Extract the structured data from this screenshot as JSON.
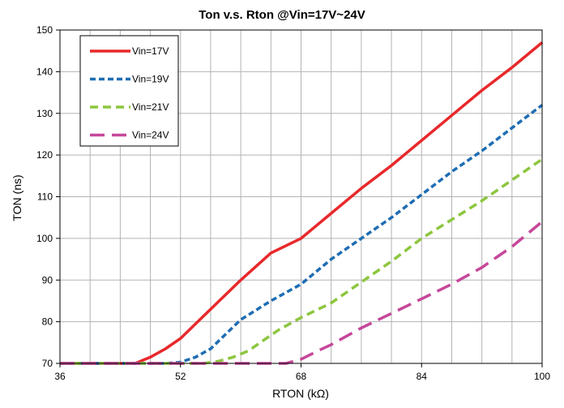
{
  "chart_data": {
    "type": "line",
    "title": "Ton v.s. Rton @Vin=17V~24V",
    "xlabel": "RTON (kΩ)",
    "ylabel": "TON (ns)",
    "xlim": [
      36,
      100
    ],
    "ylim": [
      70,
      150
    ],
    "x_major_ticks": [
      36,
      52,
      68,
      84,
      100
    ],
    "x_tick_labels": [
      "36",
      "52",
      "68",
      "84",
      "100"
    ],
    "x_minor_step": 4,
    "y_ticks": [
      70,
      80,
      90,
      100,
      110,
      120,
      130,
      140,
      150
    ],
    "y_tick_labels": [
      "70",
      "80",
      "90",
      "100",
      "110",
      "120",
      "130",
      "140",
      "150"
    ],
    "grid": true,
    "legend_position": "top-left",
    "series": [
      {
        "name": "Vin=17V",
        "color": "#e8282b",
        "dash": "solid",
        "x": [
          36,
          46,
          48,
          50,
          52,
          54,
          56,
          60,
          64,
          68,
          72,
          76,
          80,
          84,
          88,
          92,
          96,
          100
        ],
        "y": [
          70,
          70,
          71.5,
          73.5,
          76,
          79.5,
          83,
          90,
          96.5,
          100,
          106,
          112,
          117.5,
          123.5,
          129.5,
          135.5,
          141,
          147
        ]
      },
      {
        "name": "Vin=19V",
        "color": "#1e6db3",
        "dash": "short-dash",
        "x": [
          36,
          50,
          52,
          54,
          56,
          58,
          60,
          64,
          68,
          72,
          76,
          80,
          84,
          88,
          92,
          96,
          100
        ],
        "y": [
          70,
          70,
          70.3,
          71.5,
          73.5,
          77,
          80.5,
          85,
          89,
          95,
          100,
          105,
          110.5,
          116,
          121,
          126.5,
          132
        ]
      },
      {
        "name": "Vin=21V",
        "color": "#8dc63f",
        "dash": "dash",
        "x": [
          36,
          55,
          57,
          59,
          61,
          63,
          65,
          68,
          72,
          76,
          80,
          84,
          88,
          92,
          96,
          100
        ],
        "y": [
          70,
          70,
          70.5,
          71.5,
          73,
          75.5,
          78,
          81,
          84.5,
          89.5,
          94.5,
          100,
          104.5,
          109,
          114,
          119
        ]
      },
      {
        "name": "Vin=24V",
        "color": "#c6479a",
        "dash": "long-dash",
        "x": [
          36,
          66,
          68,
          70,
          72,
          76,
          80,
          84,
          88,
          92,
          96,
          100
        ],
        "y": [
          70,
          70,
          71,
          72.8,
          74.5,
          78.5,
          82,
          85.5,
          89,
          93,
          98,
          104
        ]
      }
    ]
  }
}
